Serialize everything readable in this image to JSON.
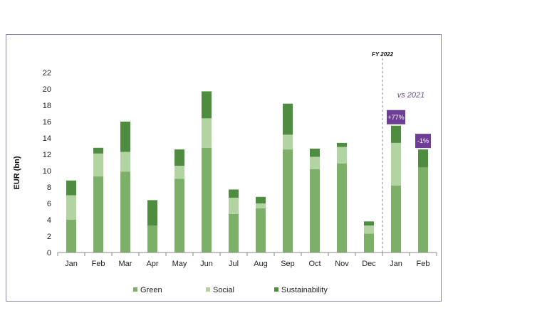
{
  "colors": {
    "green": "#7cb069",
    "social": "#b2d4a2",
    "sustainability": "#4e8d3f",
    "badge": "#6e3d96",
    "vs_text": "#6b4a95",
    "axis": "#888888",
    "divider": "#888888"
  },
  "chart_data": {
    "type": "bar",
    "stacked": true,
    "ylabel": "EUR (bn)",
    "xlabel": "",
    "ylim": [
      0,
      22
    ],
    "yticks": [
      0,
      2,
      4,
      6,
      8,
      10,
      12,
      14,
      16,
      18,
      20,
      22
    ],
    "grid": false,
    "categories": [
      "Jan",
      "Feb",
      "Mar",
      "Apr",
      "May",
      "Jun",
      "Jul",
      "Aug",
      "Sep",
      "Oct",
      "Nov",
      "Dec",
      "Jan",
      "Feb"
    ],
    "series": [
      {
        "name": "Green",
        "color_key": "green",
        "values": [
          4.0,
          9.3,
          9.9,
          3.3,
          9.0,
          12.8,
          4.7,
          5.4,
          12.6,
          10.2,
          10.9,
          2.3,
          8.2,
          10.4
        ]
      },
      {
        "name": "Social",
        "color_key": "social",
        "values": [
          3.0,
          2.8,
          2.4,
          0.0,
          1.6,
          3.6,
          2.0,
          0.6,
          1.8,
          1.5,
          2.0,
          1.0,
          5.2,
          0.0
        ]
      },
      {
        "name": "Sustainability",
        "color_key": "sustainability",
        "values": [
          1.8,
          0.7,
          3.7,
          3.1,
          2.0,
          3.3,
          1.0,
          0.8,
          3.8,
          1.0,
          0.5,
          0.5,
          2.1,
          2.2
        ]
      }
    ],
    "legend": [
      "Green",
      "Social",
      "Sustainability"
    ],
    "legend_position": "bottom",
    "annotations": {
      "fy_label": "FY 2022",
      "vs_label": "vs 2021",
      "badges": [
        {
          "category_index": 12,
          "text": "+77%"
        },
        {
          "category_index": 13,
          "text": "-1%"
        }
      ],
      "divider_after_index": 11
    }
  }
}
